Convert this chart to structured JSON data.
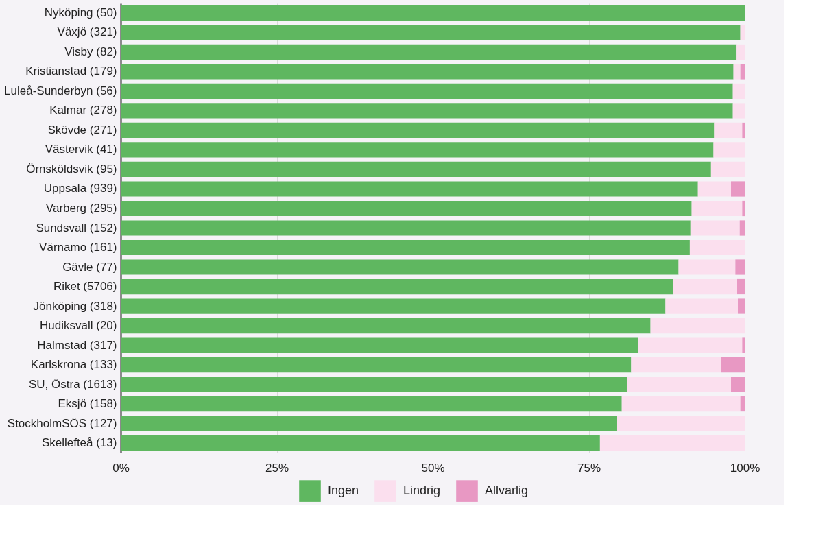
{
  "chart_data": {
    "type": "bar",
    "orientation": "horizontal",
    "stacked": true,
    "categories": [
      "Nyköping (50)",
      "Växjö (321)",
      "Visby (82)",
      "Kristianstad (179)",
      "Luleå-Sunderbyn (56)",
      "Kalmar (278)",
      "Skövde (271)",
      "Västervik (41)",
      "Örnsköldsvik (95)",
      "Uppsala (939)",
      "Varberg (295)",
      "Sundsvall (152)",
      "Värnamo (161)",
      "Gävle (77)",
      "Riket (5706)",
      "Jönköping (318)",
      "Hudiksvall (20)",
      "Halmstad (317)",
      "Karlskrona (133)",
      "SU, Östra (1613)",
      "Eksjö (158)",
      "StockholmSÖS (127)",
      "Skellefteå (13)"
    ],
    "series": [
      {
        "name": "Ingen",
        "color": "#5fb760",
        "values": [
          100,
          99.3,
          98.6,
          98.2,
          98.1,
          98.1,
          95.1,
          95.0,
          94.6,
          92.5,
          91.5,
          91.3,
          91.2,
          89.4,
          88.5,
          87.3,
          84.9,
          82.9,
          81.8,
          81.1,
          80.3,
          79.5,
          76.8
        ]
      },
      {
        "name": "Lindrig",
        "color": "#fbdfee",
        "values": [
          0,
          0.7,
          1.4,
          1.1,
          1.9,
          1.9,
          4.5,
          5.0,
          5.4,
          5.3,
          8.1,
          7.9,
          8.8,
          9.1,
          10.2,
          11.6,
          15.1,
          16.7,
          14.4,
          16.7,
          19.0,
          20.5,
          23.2
        ]
      },
      {
        "name": "Allvarlig",
        "color": "#e898c3",
        "values": [
          0,
          0,
          0,
          0.7,
          0,
          0,
          0.4,
          0,
          0,
          2.2,
          0.4,
          0.8,
          0,
          1.5,
          1.3,
          1.1,
          0,
          0.4,
          3.8,
          2.2,
          0.7,
          0,
          0
        ]
      }
    ],
    "xlim": [
      0,
      100
    ],
    "xticks": [
      {
        "value": 0,
        "label": "0%"
      },
      {
        "value": 25,
        "label": "25%"
      },
      {
        "value": 50,
        "label": "50%"
      },
      {
        "value": 75,
        "label": "75%"
      },
      {
        "value": 100,
        "label": "100%"
      }
    ],
    "grid": "x",
    "legend": "bottom"
  }
}
